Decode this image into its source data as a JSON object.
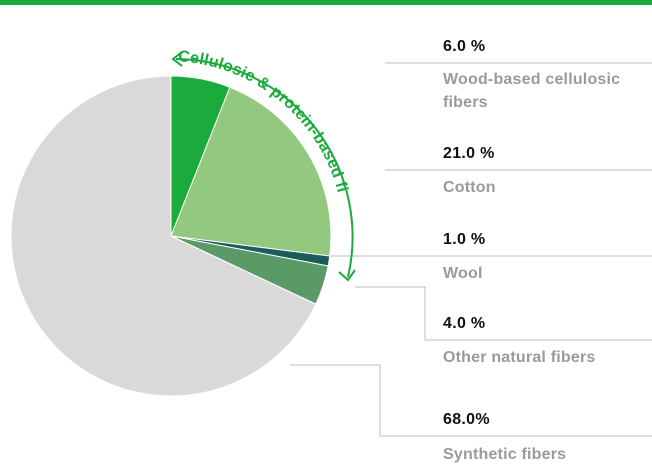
{
  "chart_data": {
    "type": "pie",
    "title": "",
    "start_angle_deg": 0,
    "direction": "clockwise",
    "slices": [
      {
        "label": "Wood-based cellulosic fibers",
        "percent_label": "6.0 %",
        "value": 6.0,
        "color": "#1aab3c"
      },
      {
        "label": "Cotton",
        "percent_label": "21.0 %",
        "value": 21.0,
        "color": "#93c97e"
      },
      {
        "label": "Wool",
        "percent_label": "1.0 %",
        "value": 1.0,
        "color": "#1d5c5c"
      },
      {
        "label": "Other natural fibers",
        "percent_label": "4.0 %",
        "value": 4.0,
        "color": "#5a9a66"
      },
      {
        "label": "Synthetic fibers",
        "percent_label": "68.0%",
        "value": 68.0,
        "color": "#d9d9d9"
      }
    ],
    "annotation": {
      "text": "Cellulosic & protein-based fibers",
      "color": "#1aab3c"
    }
  },
  "colors": {
    "accent": "#1aab3c",
    "leader_line": "#bbbbbb"
  }
}
